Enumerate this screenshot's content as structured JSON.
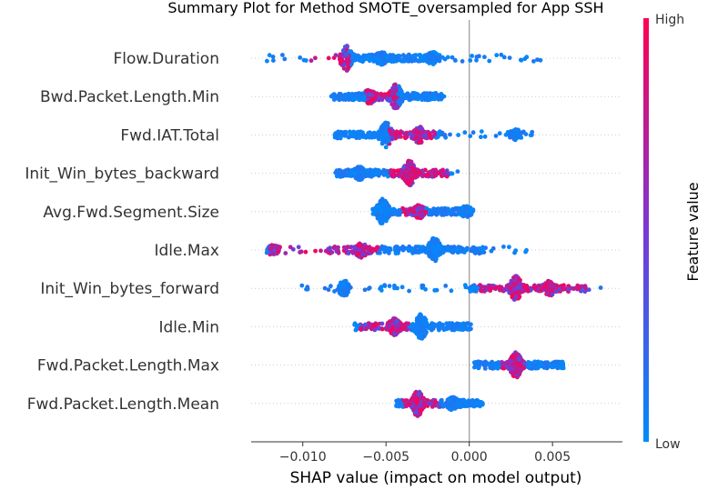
{
  "chart_data": {
    "type": "scatter",
    "subtype": "shap-beeswarm-summary",
    "title": "Summary Plot for Method SMOTE_oversampled for App SSH",
    "xlabel": "SHAP value (impact on model output)",
    "xlim": [
      -0.0131,
      0.0092
    ],
    "xticks": [
      -0.01,
      -0.005,
      0.0,
      0.005
    ],
    "xtick_labels": [
      "−0.010",
      "−0.005",
      "0.000",
      "0.005"
    ],
    "zero_line": 0.0,
    "colorbar": {
      "title": "Feature value",
      "high_label": "High",
      "low_label": "Low",
      "high_color": "#ff0052",
      "low_color": "#008bfb"
    },
    "features": [
      {
        "name": "Flow.Duration",
        "range": [
          -0.0122,
          0.0046
        ],
        "core": [
          -0.0073,
          -0.0018
        ],
        "peaks": [
          {
            "x": -0.0074,
            "h": 1.0
          },
          {
            "x": -0.0053,
            "h": 0.45
          },
          {
            "x": -0.0022,
            "h": 0.4
          }
        ],
        "high_region": [
          -0.0095,
          -0.0072
        ]
      },
      {
        "name": "Bwd.Packet.Length.Min",
        "range": [
          -0.0083,
          -0.0015
        ],
        "core": [
          -0.0083,
          -0.0016
        ],
        "peaks": [
          {
            "x": -0.0044,
            "h": 1.0
          },
          {
            "x": -0.006,
            "h": 0.5
          }
        ],
        "high_region": [
          -0.0062,
          -0.0043
        ]
      },
      {
        "name": "Fwd.IAT.Total",
        "range": [
          -0.0081,
          0.0041
        ],
        "core": [
          -0.0081,
          -0.0014
        ],
        "peaks": [
          {
            "x": -0.005,
            "h": 1.0
          },
          {
            "x": -0.003,
            "h": 0.6
          },
          {
            "x": 0.0028,
            "h": 0.35
          }
        ],
        "high_region": [
          -0.0048,
          -0.002
        ]
      },
      {
        "name": "Init_Win_bytes_backward",
        "range": [
          -0.0081,
          -0.0003
        ],
        "core": [
          -0.0081,
          -0.0012
        ],
        "peaks": [
          {
            "x": -0.0036,
            "h": 1.0
          },
          {
            "x": -0.0066,
            "h": 0.45
          }
        ],
        "high_region": [
          -0.0048,
          -0.0012
        ]
      },
      {
        "name": "Avg.Fwd.Segment.Size",
        "range": [
          -0.0058,
          0.0004
        ],
        "core": [
          -0.0058,
          0.0003
        ],
        "peaks": [
          {
            "x": -0.0052,
            "h": 1.0
          },
          {
            "x": -0.003,
            "h": 0.45
          },
          {
            "x": -0.0002,
            "h": 0.35
          }
        ],
        "high_region": [
          -0.004,
          -0.0026
        ]
      },
      {
        "name": "Idle.Max",
        "range": [
          -0.0122,
          0.0037
        ],
        "core": [
          -0.0087,
          0.001
        ],
        "peaks": [
          {
            "x": -0.0021,
            "h": 1.0
          },
          {
            "x": -0.0065,
            "h": 0.55
          },
          {
            "x": -0.0118,
            "h": 0.3
          }
        ],
        "high_region": [
          -0.012,
          -0.0055
        ]
      },
      {
        "name": "Init_Win_bytes_forward",
        "range": [
          -0.0104,
          0.0082
        ],
        "core": [
          0.0,
          0.0072
        ],
        "peaks": [
          {
            "x": 0.0028,
            "h": 1.0
          },
          {
            "x": 0.0048,
            "h": 0.55
          },
          {
            "x": -0.0075,
            "h": 0.55
          }
        ],
        "high_region": [
          0.0005,
          0.0078
        ]
      },
      {
        "name": "Idle.Min",
        "range": [
          -0.0069,
          0.0001
        ],
        "core": [
          -0.0069,
          0.0001
        ],
        "peaks": [
          {
            "x": -0.0029,
            "h": 1.0
          },
          {
            "x": -0.0045,
            "h": 0.6
          }
        ],
        "high_region": [
          -0.0066,
          -0.0036
        ]
      },
      {
        "name": "Fwd.Packet.Length.Max",
        "range": [
          0.0003,
          0.0057
        ],
        "core": [
          0.0003,
          0.0057
        ],
        "peaks": [
          {
            "x": 0.0028,
            "h": 1.0
          }
        ],
        "high_region": [
          0.0018,
          0.0035
        ]
      },
      {
        "name": "Fwd.Packet.Length.Mean",
        "range": [
          -0.0044,
          0.0008
        ],
        "core": [
          -0.0044,
          0.0008
        ],
        "peaks": [
          {
            "x": -0.0031,
            "h": 1.0
          },
          {
            "x": -0.001,
            "h": 0.45
          }
        ],
        "high_region": [
          -0.004,
          -0.0018
        ]
      }
    ]
  }
}
